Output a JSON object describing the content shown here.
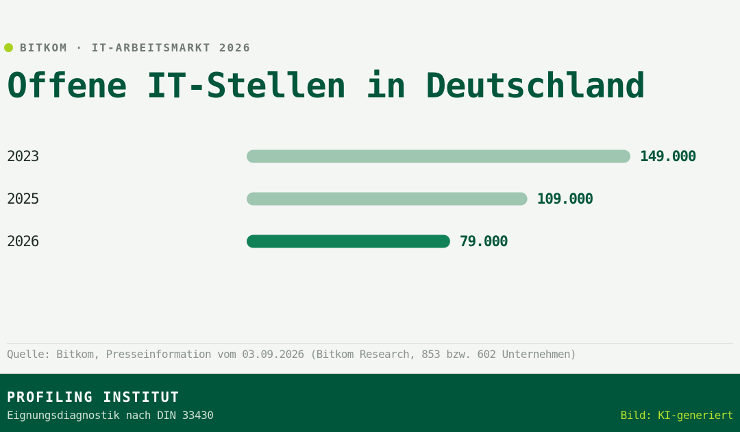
{
  "header": {
    "kicker": "BITKOM · IT-ARBEITSMARKT 2026",
    "title": "Offene IT-Stellen in Deutschland"
  },
  "colors": {
    "accent": "#a8d21f",
    "brand_green": "#00563b",
    "bar_highlight": "#118157",
    "bar_muted": "#9fc6b1",
    "background": "#f4f6f3"
  },
  "chart_data": {
    "type": "bar",
    "orientation": "horizontal",
    "categories": [
      "2023",
      "2025",
      "2026"
    ],
    "values": [
      149000,
      109000,
      79000
    ],
    "value_labels": [
      "149.000",
      "109.000",
      "79.000"
    ],
    "highlight_index": 2,
    "xlim": [
      0,
      149000
    ],
    "grid": false,
    "legend": "none"
  },
  "source": "Quelle: Bitkom, Presseinformation vom 03.09.2026 (Bitkom Research, 853 bzw. 602 Unternehmen)",
  "footer": {
    "brand": "PROFILING INSTITUT",
    "tagline": "Eignungsdiagnostik nach DIN 33430",
    "credit": "Bild: KI-generiert"
  }
}
